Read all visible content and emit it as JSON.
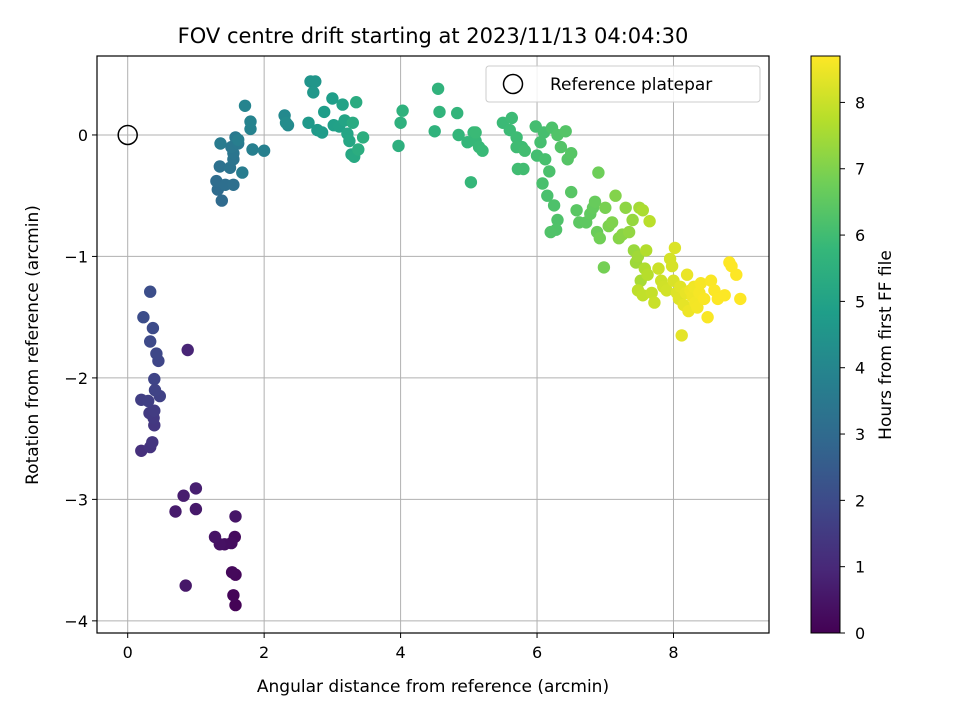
{
  "chart_data": {
    "type": "scatter",
    "title": "FOV centre drift starting at 2023/11/13 04:04:30",
    "xlabel": "Angular distance from reference (arcmin)",
    "ylabel": "Rotation from reference (arcmin)",
    "xlim": [
      -0.45,
      9.4
    ],
    "ylim": [
      -4.1,
      0.65
    ],
    "xticks": [
      0,
      2,
      4,
      6,
      8
    ],
    "yticks": [
      0,
      -1,
      -2,
      -3,
      -4
    ],
    "grid": true,
    "legend": {
      "position": "top-right",
      "entries": [
        "Reference platepar"
      ]
    },
    "reference_point": {
      "x": 0,
      "y": 0
    },
    "colorbar": {
      "label": "Hours from first FF file",
      "min": 0,
      "max": 8.7,
      "ticks": [
        0,
        1,
        2,
        3,
        4,
        5,
        6,
        7,
        8
      ]
    },
    "colormap_stops": [
      "#440154",
      "#482878",
      "#3e4989",
      "#31688e",
      "#26828e",
      "#1f9e89",
      "#35b779",
      "#6ece58",
      "#b5de2b",
      "#fde725"
    ],
    "series": [
      {
        "points": [
          [
            1.58,
            -3.87,
            0.05
          ],
          [
            1.55,
            -3.79,
            0.1
          ],
          [
            1.58,
            -3.62,
            0.15
          ],
          [
            1.53,
            -3.6,
            0.2
          ],
          [
            1.57,
            -3.31,
            0.25
          ],
          [
            1.52,
            -3.36,
            0.3
          ],
          [
            1.42,
            -3.37,
            0.35
          ],
          [
            1.35,
            -3.37,
            0.4
          ],
          [
            1.28,
            -3.31,
            0.45
          ],
          [
            1.58,
            -3.14,
            0.5
          ],
          [
            0.85,
            -3.71,
            0.55
          ],
          [
            1.0,
            -3.08,
            0.6
          ],
          [
            0.7,
            -3.1,
            0.65
          ],
          [
            0.82,
            -2.97,
            0.7
          ],
          [
            1.0,
            -2.91,
            0.75
          ],
          [
            0.88,
            -1.77,
            0.9
          ],
          [
            0.2,
            -2.6,
            1.2
          ],
          [
            0.33,
            -2.57,
            1.3
          ],
          [
            0.36,
            -2.53,
            1.35
          ],
          [
            0.39,
            -2.39,
            1.4
          ],
          [
            0.38,
            -2.33,
            1.45
          ],
          [
            0.32,
            -2.29,
            1.5
          ],
          [
            0.39,
            -2.27,
            1.55
          ],
          [
            0.2,
            -2.18,
            1.6
          ],
          [
            0.3,
            -2.19,
            1.65
          ],
          [
            0.47,
            -2.15,
            1.7
          ],
          [
            0.4,
            -2.1,
            1.75
          ],
          [
            0.39,
            -2.01,
            1.8
          ],
          [
            0.45,
            -1.86,
            1.85
          ],
          [
            0.42,
            -1.8,
            1.9
          ],
          [
            0.33,
            -1.7,
            1.95
          ],
          [
            0.37,
            -1.59,
            2.0
          ],
          [
            0.23,
            -1.5,
            2.05
          ],
          [
            0.33,
            -1.29,
            2.1
          ],
          [
            1.38,
            -0.54,
            3.0
          ],
          [
            1.32,
            -0.45,
            3.05
          ],
          [
            1.3,
            -0.38,
            3.1
          ],
          [
            1.43,
            -0.41,
            3.15
          ],
          [
            1.55,
            -0.41,
            3.2
          ],
          [
            1.35,
            -0.26,
            3.25
          ],
          [
            1.5,
            -0.27,
            3.3
          ],
          [
            1.55,
            -0.2,
            3.35
          ],
          [
            1.55,
            -0.15,
            3.4
          ],
          [
            1.52,
            -0.1,
            3.45
          ],
          [
            1.62,
            -0.07,
            3.5
          ],
          [
            1.58,
            -0.02,
            3.55
          ],
          [
            1.36,
            -0.07,
            3.6
          ],
          [
            1.68,
            -0.31,
            3.65
          ],
          [
            1.62,
            -0.04,
            3.7
          ],
          [
            1.83,
            -0.12,
            3.75
          ],
          [
            2.0,
            -0.13,
            3.8
          ],
          [
            1.8,
            0.05,
            3.85
          ],
          [
            1.8,
            0.11,
            3.9
          ],
          [
            1.72,
            0.24,
            3.95
          ],
          [
            2.3,
            0.16,
            4.1
          ],
          [
            2.35,
            0.08,
            4.15
          ],
          [
            2.32,
            0.1,
            4.2
          ],
          [
            2.68,
            0.44,
            4.5
          ],
          [
            2.75,
            0.44,
            4.55
          ],
          [
            2.72,
            0.35,
            4.6
          ],
          [
            2.65,
            0.1,
            4.65
          ],
          [
            2.78,
            0.04,
            4.7
          ],
          [
            2.85,
            0.02,
            4.75
          ],
          [
            2.88,
            0.19,
            4.8
          ],
          [
            3.0,
            0.3,
            4.85
          ],
          [
            3.02,
            0.08,
            4.9
          ],
          [
            3.1,
            0.07,
            4.95
          ],
          [
            3.15,
            0.25,
            5.0
          ],
          [
            3.18,
            0.12,
            5.05
          ],
          [
            3.22,
            0.01,
            5.1
          ],
          [
            3.25,
            -0.05,
            5.15
          ],
          [
            3.28,
            -0.16,
            5.2
          ],
          [
            3.32,
            -0.18,
            5.25
          ],
          [
            3.3,
            0.1,
            5.3
          ],
          [
            3.35,
            0.27,
            5.35
          ],
          [
            3.38,
            -0.12,
            5.4
          ],
          [
            3.45,
            -0.02,
            5.45
          ],
          [
            3.97,
            -0.09,
            5.5
          ],
          [
            4.0,
            0.1,
            5.52
          ],
          [
            4.03,
            0.2,
            5.55
          ],
          [
            4.5,
            0.03,
            5.6
          ],
          [
            4.55,
            0.38,
            5.62
          ],
          [
            4.57,
            0.19,
            5.65
          ],
          [
            4.83,
            0.18,
            5.7
          ],
          [
            4.85,
            0.0,
            5.72
          ],
          [
            4.98,
            -0.06,
            5.75
          ],
          [
            5.03,
            -0.39,
            5.78
          ],
          [
            5.07,
            0.02,
            5.8
          ],
          [
            5.1,
            -0.05,
            5.82
          ],
          [
            5.15,
            -0.1,
            5.85
          ],
          [
            5.2,
            -0.13,
            5.87
          ],
          [
            5.1,
            0.02,
            5.88
          ],
          [
            5.5,
            0.1,
            5.9
          ],
          [
            5.6,
            0.04,
            5.92
          ],
          [
            5.63,
            0.14,
            5.93
          ],
          [
            5.7,
            -0.02,
            5.95
          ],
          [
            5.78,
            -0.1,
            5.97
          ],
          [
            5.7,
            -0.1,
            5.98
          ],
          [
            5.72,
            -0.28,
            6.0
          ],
          [
            5.8,
            -0.28,
            6.02
          ],
          [
            5.82,
            -0.13,
            6.03
          ],
          [
            5.98,
            0.07,
            6.05
          ],
          [
            6.0,
            -0.17,
            6.06
          ],
          [
            6.05,
            -0.06,
            6.08
          ],
          [
            6.1,
            0.02,
            6.1
          ],
          [
            6.12,
            -0.2,
            6.12
          ],
          [
            6.08,
            -0.4,
            6.14
          ],
          [
            6.15,
            -0.5,
            6.16
          ],
          [
            6.18,
            -0.3,
            6.18
          ],
          [
            6.22,
            0.06,
            6.2
          ],
          [
            6.25,
            -0.58,
            6.22
          ],
          [
            6.3,
            -0.7,
            6.24
          ],
          [
            6.28,
            -0.78,
            6.26
          ],
          [
            6.2,
            -0.8,
            6.28
          ],
          [
            6.3,
            0.0,
            6.3
          ],
          [
            6.35,
            -0.1,
            6.32
          ],
          [
            6.42,
            0.03,
            6.34
          ],
          [
            6.45,
            -0.2,
            6.36
          ],
          [
            6.5,
            -0.15,
            6.38
          ],
          [
            6.5,
            -0.47,
            6.4
          ],
          [
            6.58,
            -0.62,
            6.43
          ],
          [
            6.62,
            -0.72,
            6.46
          ],
          [
            6.72,
            -0.72,
            6.5
          ],
          [
            6.78,
            -0.65,
            6.55
          ],
          [
            6.82,
            -0.6,
            6.6
          ],
          [
            6.85,
            -0.55,
            6.65
          ],
          [
            6.88,
            -0.8,
            6.7
          ],
          [
            6.9,
            -0.31,
            6.75
          ],
          [
            6.92,
            -0.85,
            6.8
          ],
          [
            6.98,
            -1.09,
            6.85
          ],
          [
            7.0,
            -0.6,
            6.9
          ],
          [
            7.05,
            -0.75,
            6.95
          ],
          [
            7.1,
            -0.72,
            7.0
          ],
          [
            7.15,
            -0.5,
            7.05
          ],
          [
            7.2,
            -0.85,
            7.1
          ],
          [
            7.25,
            -0.82,
            7.15
          ],
          [
            7.3,
            -0.6,
            7.2
          ],
          [
            7.35,
            -0.8,
            7.25
          ],
          [
            7.4,
            -0.7,
            7.3
          ],
          [
            7.42,
            -0.95,
            7.35
          ],
          [
            7.45,
            -1.05,
            7.4
          ],
          [
            7.48,
            -1.0,
            7.45
          ],
          [
            7.5,
            -0.6,
            7.5
          ],
          [
            7.52,
            -1.2,
            7.55
          ],
          [
            7.55,
            -0.62,
            7.6
          ],
          [
            7.58,
            -1.1,
            7.65
          ],
          [
            7.6,
            -0.95,
            7.7
          ],
          [
            7.62,
            -1.15,
            7.75
          ],
          [
            7.65,
            -0.71,
            7.8
          ],
          [
            7.48,
            -1.28,
            7.85
          ],
          [
            7.55,
            -1.32,
            7.9
          ],
          [
            7.68,
            -1.3,
            7.95
          ],
          [
            7.72,
            -1.38,
            8.0
          ],
          [
            7.78,
            -1.1,
            8.03
          ],
          [
            7.82,
            -1.2,
            8.06
          ],
          [
            7.85,
            -1.25,
            8.09
          ],
          [
            7.9,
            -1.28,
            8.12
          ],
          [
            7.95,
            -1.02,
            8.15
          ],
          [
            7.98,
            -1.08,
            8.18
          ],
          [
            8.0,
            -1.2,
            8.21
          ],
          [
            8.02,
            -0.93,
            8.24
          ],
          [
            8.05,
            -1.3,
            8.27
          ],
          [
            8.08,
            -1.35,
            8.3
          ],
          [
            8.1,
            -1.25,
            8.33
          ],
          [
            8.12,
            -1.65,
            8.36
          ],
          [
            8.15,
            -1.4,
            8.39
          ],
          [
            8.18,
            -1.3,
            8.42
          ],
          [
            8.2,
            -1.15,
            8.45
          ],
          [
            8.22,
            -1.45,
            8.48
          ],
          [
            8.25,
            -1.28,
            8.5
          ],
          [
            8.28,
            -1.33,
            8.52
          ],
          [
            8.3,
            -1.25,
            8.54
          ],
          [
            8.32,
            -1.38,
            8.56
          ],
          [
            8.35,
            -1.42,
            8.58
          ],
          [
            8.38,
            -1.3,
            8.6
          ],
          [
            8.4,
            -1.22,
            8.62
          ],
          [
            8.45,
            -1.35,
            8.64
          ],
          [
            8.5,
            -1.5,
            8.65
          ],
          [
            8.55,
            -1.2,
            8.66
          ],
          [
            8.6,
            -1.28,
            8.67
          ],
          [
            8.65,
            -1.35,
            8.68
          ],
          [
            8.75,
            -1.32,
            8.69
          ],
          [
            8.82,
            -1.05,
            8.7
          ],
          [
            8.85,
            -1.08,
            8.7
          ],
          [
            8.92,
            -1.15,
            8.7
          ],
          [
            8.98,
            -1.35,
            8.7
          ]
        ]
      }
    ]
  }
}
